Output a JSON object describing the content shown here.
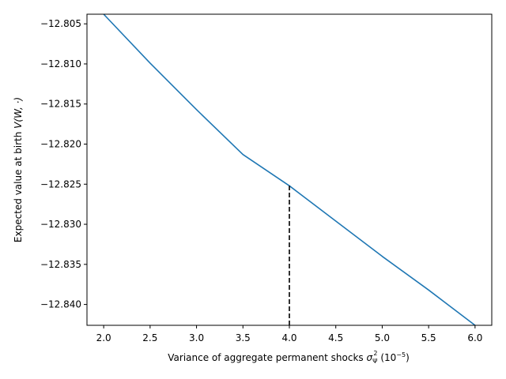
{
  "chart_data": {
    "type": "line",
    "xlabel_main": "Variance of aggregate permanent shocks ",
    "xlabel_sigma": "σ",
    "xlabel_sub": "Ψ",
    "xlabel_sup": "2",
    "xlabel_units_open": " (10",
    "xlabel_units_exp": "−5",
    "xlabel_units_close": ")",
    "ylabel_main": "Expected value at birth ",
    "ylabel_math": "V(W, ·)",
    "xlim": [
      1.82,
      6.18
    ],
    "ylim": [
      -12.8426,
      -12.8038
    ],
    "xticks": [
      "2.0",
      "2.5",
      "3.0",
      "3.5",
      "4.0",
      "4.5",
      "5.0",
      "5.5",
      "6.0"
    ],
    "yticks": [
      "−12.805",
      "−12.810",
      "−12.815",
      "−12.820",
      "−12.825",
      "−12.830",
      "−12.835",
      "−12.840"
    ],
    "series": [
      {
        "color": "#1f77b4",
        "x": [
          2.0,
          2.5,
          3.0,
          3.5,
          4.0,
          4.5,
          5.0,
          5.5,
          6.0
        ],
        "y": [
          -12.8038,
          -12.8099,
          -12.8157,
          -12.8213,
          -12.8252,
          -12.8296,
          -12.834,
          -12.8382,
          -12.8426
        ]
      }
    ],
    "vline": {
      "x": 4.0,
      "y_top": -12.8252,
      "color": "#000000",
      "style": "dashed"
    }
  }
}
